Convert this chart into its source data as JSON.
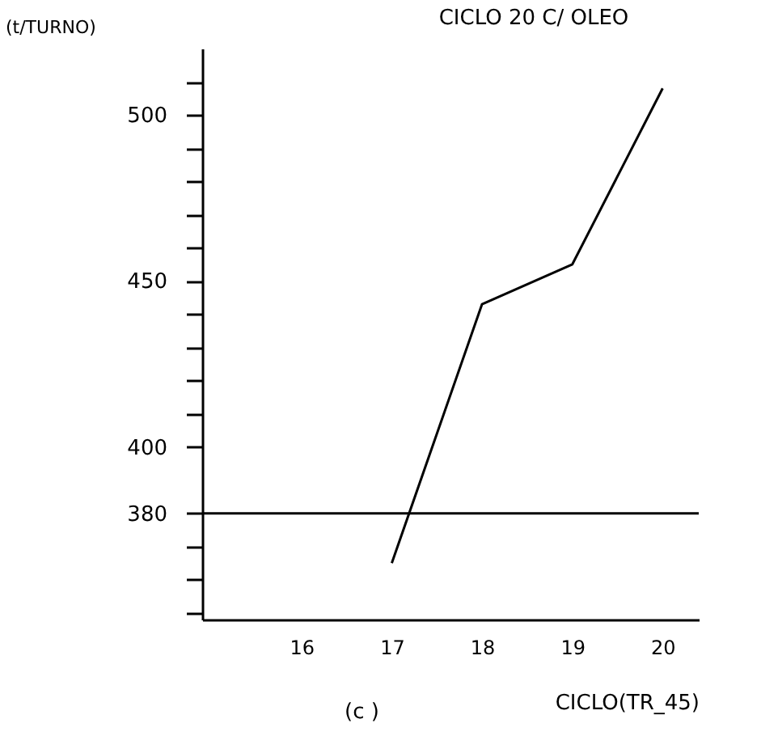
{
  "chart_data": {
    "type": "line",
    "title": "CICLO    20   C/ OLEO",
    "ylabel": "(t/TURNO)",
    "xlabel": "CICLO(TR_45)",
    "annotations": [
      "(c )"
    ],
    "x": [
      17,
      18,
      19,
      20
    ],
    "series": [
      {
        "color": "#000000",
        "values": [
          365,
          443,
          455,
          508
        ]
      }
    ],
    "xlim": [
      14.9,
      20.4
    ],
    "xticks": [
      16,
      17,
      18,
      19,
      20
    ],
    "ylim": [
      348,
      520
    ],
    "yticks": [
      {
        "value": 350,
        "label": null
      },
      {
        "value": 360,
        "label": null
      },
      {
        "value": 370,
        "label": null
      },
      380,
      400,
      {
        "value": 410,
        "label": null
      },
      {
        "value": 420,
        "label": null
      },
      {
        "value": 430,
        "label": null
      },
      {
        "value": 440,
        "label": null
      },
      450,
      {
        "value": 460,
        "label": null
      },
      {
        "value": 470,
        "label": null
      },
      {
        "value": 480,
        "label": null
      },
      {
        "value": 490,
        "label": null
      },
      500,
      {
        "value": 510,
        "label": null
      }
    ],
    "ref_lines": [
      {
        "axis": "y",
        "value": 380,
        "color": "#000000"
      }
    ],
    "grid": false,
    "legend": false,
    "marker": "none",
    "line_style": "solid"
  }
}
